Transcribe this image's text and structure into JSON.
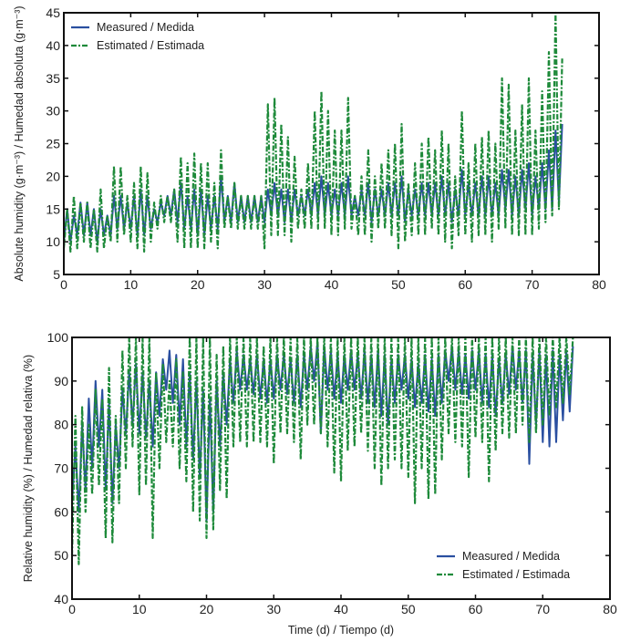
{
  "colors": {
    "measured": "#2a4fa0",
    "estimated": "#1e8a3a"
  },
  "chart_data": [
    {
      "type": "line",
      "xlabel": "",
      "ylabel": "Absolute humidity (g·m⁻³) / Humedad absoluta (g·m⁻³)",
      "xlim": [
        0,
        80
      ],
      "ylim": [
        5,
        45
      ],
      "xticks": [
        0,
        10,
        20,
        30,
        40,
        50,
        60,
        70,
        80
      ],
      "yticks": [
        5,
        10,
        15,
        20,
        25,
        30,
        35,
        40,
        45
      ],
      "grid": false,
      "legend": "top-left",
      "x": [
        0,
        0.5,
        1,
        1.5,
        2,
        2.5,
        3,
        3.5,
        4,
        4.5,
        5,
        5.5,
        6,
        6.5,
        7,
        7.5,
        8,
        8.5,
        9,
        9.5,
        10,
        10.5,
        11,
        11.5,
        12,
        12.5,
        13,
        13.5,
        14,
        14.5,
        15,
        15.5,
        16,
        16.5,
        17,
        17.5,
        18,
        18.5,
        19,
        19.5,
        20,
        20.5,
        21,
        21.5,
        22,
        22.5,
        23,
        23.5,
        24,
        24.5,
        25,
        25.5,
        26,
        26.5,
        27,
        27.5,
        28,
        28.5,
        29,
        29.5,
        30,
        30.5,
        31,
        31.5,
        32,
        32.5,
        33,
        33.5,
        34,
        34.5,
        35,
        35.5,
        36,
        36.5,
        37,
        37.5,
        38,
        38.5,
        39,
        39.5,
        40,
        40.5,
        41,
        41.5,
        42,
        42.5,
        43,
        43.5,
        44,
        44.5,
        45,
        45.5,
        46,
        46.5,
        47,
        47.5,
        48,
        48.5,
        49,
        49.5,
        50,
        50.5,
        51,
        51.5,
        52,
        52.5,
        53,
        53.5,
        54,
        54.5,
        55,
        55.5,
        56,
        56.5,
        57,
        57.5,
        58,
        58.5,
        59,
        59.5,
        60,
        60.5,
        61,
        61.5,
        62,
        62.5,
        63,
        63.5,
        64,
        64.5,
        65,
        65.5,
        66,
        66.5,
        67,
        67.5,
        68,
        68.5,
        69,
        69.5,
        70,
        70.5,
        71,
        71.5,
        72,
        72.5,
        73,
        73.5,
        74,
        74.5
      ],
      "series": [
        {
          "name": "Measured / Medida",
          "style": "solid",
          "values": [
            10,
            15,
            10,
            14,
            11,
            16,
            11,
            16,
            11,
            15,
            10,
            15,
            11,
            14,
            11,
            17,
            12,
            17,
            12,
            16,
            12,
            17,
            11,
            18,
            11,
            17,
            12,
            15,
            13,
            16,
            14,
            17,
            14,
            18,
            13,
            19,
            12,
            17,
            12,
            18,
            11,
            18,
            11,
            17,
            12,
            17,
            12,
            20,
            13,
            17,
            13,
            19,
            13,
            17,
            13,
            17,
            13,
            17,
            13,
            17,
            13,
            18,
            14,
            19,
            14,
            18,
            13,
            18,
            13,
            18,
            14,
            17,
            14,
            18,
            14,
            19,
            14,
            20,
            14,
            19,
            14,
            18,
            14,
            19,
            14,
            20,
            14,
            17,
            14,
            18,
            14,
            19,
            13,
            18,
            14,
            18,
            14,
            19,
            14,
            19,
            14,
            20,
            13,
            18,
            14,
            18,
            14,
            19,
            14,
            19,
            14,
            19,
            14,
            20,
            14,
            19,
            13,
            18,
            14,
            21,
            14,
            19,
            14,
            19,
            14,
            20,
            14,
            20,
            14,
            19,
            14,
            21,
            15,
            21,
            14,
            20,
            14,
            21,
            15,
            22,
            14,
            20,
            15,
            22,
            15,
            24,
            15,
            27,
            16,
            28
          ]
        },
        {
          "name": "Estimated / Estimada",
          "style": "dash-dot",
          "values": [
            9,
            15,
            8.5,
            17,
            9,
            16,
            10,
            16,
            9,
            15,
            8.5,
            18,
            9,
            14,
            10,
            21.5,
            10,
            21.5,
            11,
            17,
            10,
            19,
            9,
            21.5,
            8.5,
            20.5,
            10,
            16,
            12,
            17,
            13,
            17,
            13,
            18,
            10,
            23,
            9,
            22,
            9,
            23.5,
            9,
            22,
            9,
            22,
            10,
            19,
            9,
            24,
            12,
            17,
            12,
            19,
            12,
            17,
            12,
            17,
            12,
            17,
            12,
            17,
            9,
            31,
            11,
            32,
            11,
            28,
            11,
            26,
            10,
            23,
            12,
            18,
            12,
            22,
            12,
            30,
            12,
            33,
            12,
            30,
            11,
            27,
            11,
            27,
            12,
            32,
            12,
            17,
            11,
            20,
            11,
            24,
            10,
            20,
            12,
            22,
            12,
            24,
            11,
            25,
            9,
            28,
            10,
            19,
            11,
            22,
            11,
            25,
            11,
            26,
            12,
            24,
            11,
            27,
            10,
            25,
            9,
            20,
            11,
            30,
            11,
            22,
            10,
            25,
            11,
            26,
            11,
            27,
            10,
            25,
            12,
            35,
            12,
            34,
            11,
            27,
            11,
            31,
            11,
            35,
            11,
            27,
            12,
            33,
            13,
            39,
            14,
            45,
            15,
            38
          ]
        }
      ]
    },
    {
      "type": "line",
      "xlabel": "Time (d) / Tiempo (d)",
      "ylabel": "Relative humidity (%) / Humedad relativa (%)",
      "xlim": [
        0,
        80
      ],
      "ylim": [
        40,
        100
      ],
      "xticks": [
        0,
        10,
        20,
        30,
        40,
        50,
        60,
        70,
        80
      ],
      "yticks": [
        40,
        50,
        60,
        70,
        80,
        90,
        100
      ],
      "grid": false,
      "legend": "bottom-right",
      "series": [
        {
          "name": "Measured / Medida",
          "style": "solid",
          "values": [
            62,
            75,
            60,
            80,
            65,
            86,
            70,
            90,
            75,
            88,
            65,
            85,
            62,
            80,
            70,
            88,
            78,
            92,
            80,
            94,
            78,
            92,
            77,
            90,
            75,
            92,
            82,
            95,
            88,
            97,
            85,
            96,
            80,
            95,
            75,
            92,
            72,
            90,
            68,
            88,
            58,
            86,
            60,
            90,
            75,
            92,
            80,
            95,
            85,
            97,
            88,
            96,
            88,
            95,
            87,
            96,
            86,
            95,
            85,
            95,
            86,
            96,
            88,
            96,
            87,
            95,
            85,
            96,
            84,
            96,
            88,
            98,
            90,
            99,
            78,
            98,
            88,
            97,
            86,
            96,
            85,
            96,
            88,
            97,
            88,
            96,
            86,
            97,
            85,
            96,
            84,
            97,
            82,
            96,
            80,
            95,
            85,
            96,
            88,
            96,
            86,
            95,
            84,
            94,
            85,
            96,
            83,
            95,
            82,
            96,
            85,
            97,
            90,
            98,
            88,
            97,
            87,
            96,
            86,
            97,
            88,
            97,
            85,
            96,
            84,
            96,
            82,
            95,
            85,
            96,
            87,
            98,
            88,
            97,
            85,
            97,
            71,
            96,
            80,
            97,
            76,
            96,
            75,
            97,
            76,
            96,
            81,
            97,
            83,
            98
          ]
        },
        {
          "name": "Estimated / Estimada",
          "style": "dash-dot",
          "values": [
            50,
            82,
            48,
            84,
            60,
            80,
            64,
            88,
            66,
            86,
            54,
            93,
            53,
            82,
            62,
            97,
            70,
            100,
            75,
            100,
            64,
            100,
            66,
            100,
            54,
            92,
            70,
            94,
            76,
            90,
            75,
            95,
            70,
            92,
            67,
            100,
            60,
            100,
            58,
            100,
            54,
            100,
            56,
            96,
            65,
            98,
            63,
            100,
            75,
            100,
            76,
            100,
            75,
            100,
            76,
            100,
            76,
            98,
            75,
            100,
            71,
            100,
            78,
            100,
            78,
            100,
            76,
            100,
            72,
            100,
            80,
            100,
            80,
            100,
            78,
            100,
            75,
            100,
            69,
            100,
            67,
            100,
            74,
            100,
            75,
            100,
            78,
            100,
            74,
            100,
            70,
            100,
            66,
            100,
            70,
            100,
            72,
            100,
            70,
            100,
            68,
            100,
            62,
            100,
            70,
            100,
            63,
            100,
            64,
            100,
            72,
            100,
            78,
            100,
            76,
            100,
            75,
            100,
            68,
            100,
            77,
            100,
            76,
            100,
            67,
            100,
            74,
            100,
            78,
            100,
            77,
            100,
            78,
            100,
            80,
            100,
            76,
            100,
            78,
            100,
            80,
            100,
            82,
            100,
            84,
            100,
            85,
            100,
            87,
            100
          ]
        }
      ]
    }
  ]
}
